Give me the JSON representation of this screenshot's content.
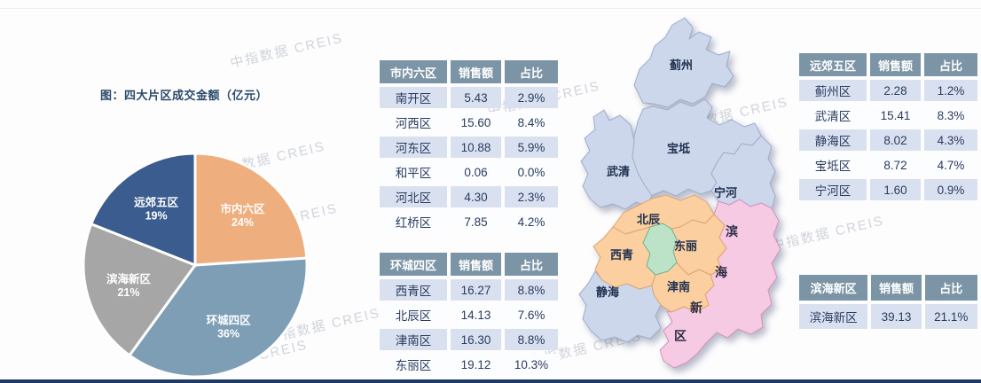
{
  "watermark": "中指数据 CREIS",
  "chart_data": {
    "type": "pie",
    "title": "图：四大片区成交金额（亿元）",
    "categories": [
      "市内六区",
      "环城四区",
      "滨海新区",
      "远郊五区"
    ],
    "values": [
      24,
      36,
      21,
      19
    ],
    "value_labels": [
      "24%",
      "36%",
      "21%",
      "19%"
    ],
    "colors": [
      "#efae7e",
      "#7e9eb6",
      "#a6a6a6",
      "#3b5c8e"
    ],
    "start_angle_deg": 0,
    "direction": "clockwise",
    "legend": "none",
    "label_position": "inside"
  },
  "tables": [
    {
      "name": "市内六区",
      "headers": [
        "市内六区",
        "销售额",
        "占比"
      ],
      "rows": [
        [
          "南开区",
          "5.43",
          "2.9%"
        ],
        [
          "河西区",
          "15.60",
          "8.4%"
        ],
        [
          "河东区",
          "10.88",
          "5.9%"
        ],
        [
          "和平区",
          "0.06",
          "0.0%"
        ],
        [
          "河北区",
          "4.30",
          "2.3%"
        ],
        [
          "红桥区",
          "7.85",
          "4.2%"
        ]
      ]
    },
    {
      "name": "环城四区",
      "headers": [
        "环城四区",
        "销售额",
        "占比"
      ],
      "rows": [
        [
          "西青区",
          "16.27",
          "8.8%"
        ],
        [
          "北辰区",
          "14.13",
          "7.6%"
        ],
        [
          "津南区",
          "16.30",
          "8.8%"
        ],
        [
          "东丽区",
          "19.12",
          "10.3%"
        ]
      ]
    },
    {
      "name": "远郊五区",
      "headers": [
        "远郊五区",
        "销售额",
        "占比"
      ],
      "rows": [
        [
          "蓟州区",
          "2.28",
          "1.2%"
        ],
        [
          "武清区",
          "15.41",
          "8.3%"
        ],
        [
          "静海区",
          "8.02",
          "4.3%"
        ],
        [
          "宝坻区",
          "8.72",
          "4.7%"
        ],
        [
          "宁河区",
          "1.60",
          "0.9%"
        ]
      ]
    },
    {
      "name": "滨海新区",
      "headers": [
        "滨海新区",
        "销售额",
        "占比"
      ],
      "rows": [
        [
          "滨海新区",
          "39.13",
          "21.1%"
        ]
      ]
    }
  ],
  "map": {
    "labels": [
      "蓟州",
      "宝坻",
      "武清",
      "宁河",
      "北辰",
      "西青",
      "东丽",
      "津南",
      "静海"
    ],
    "binhai_chars": [
      "滨",
      "海",
      "新",
      "区"
    ],
    "colors": {
      "suburb": "#cdd7ec",
      "ring": "#fbcf9f",
      "core": "#bce3c8",
      "binhai": "#f5cae2"
    }
  },
  "footer_bar_color": "#1e3a66"
}
